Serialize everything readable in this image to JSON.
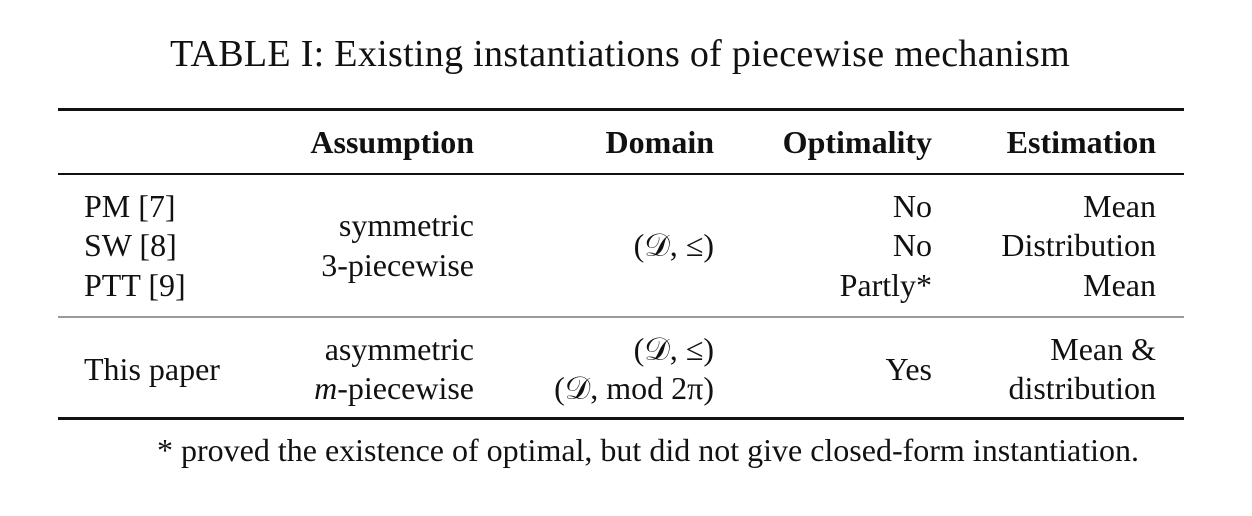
{
  "caption": "TABLE I: Existing instantiations of piecewise mechanism",
  "table": {
    "headers": [
      "",
      "Assumption",
      "Domain",
      "Optimality",
      "Estimation"
    ],
    "group1": {
      "methods": [
        "PM [7]",
        "SW [8]",
        "PTT [9]"
      ],
      "assumption": [
        "symmetric",
        "3-piecewise"
      ],
      "domain": [
        "(𝒟, ≤)"
      ],
      "optimality": [
        "No",
        "No",
        "Partly*"
      ],
      "estimation": [
        "Mean",
        "Distribution",
        "Mean"
      ]
    },
    "group2": {
      "method": "This paper",
      "assumption": [
        "asymmetric",
        "-piecewise"
      ],
      "assumption_var": "m",
      "domain": [
        "(𝒟, ≤)",
        "(𝒟, mod 2π)"
      ],
      "optimality": "Yes",
      "estimation": [
        "Mean &",
        "distribution"
      ]
    }
  },
  "footnote": "* proved the existence of optimal, but did not give closed-form instantiation."
}
